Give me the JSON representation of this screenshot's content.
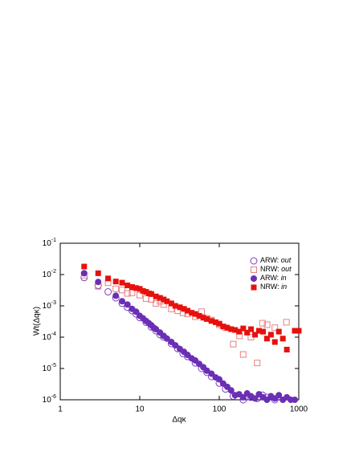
{
  "chart_data": {
    "type": "scatter",
    "xlabel": "Δqκ",
    "ylabel": "Wt(Δqκ)",
    "xlog": true,
    "ylog": true,
    "legend": "upper right",
    "xlim": [
      1,
      1000
    ],
    "xticks": [
      1,
      10,
      100,
      1000
    ],
    "ylim": [
      1e-06,
      0.1
    ],
    "yticks": [
      {
        "value": 1e-06,
        "label": "10-6"
      },
      {
        "value": 1e-05,
        "label": "10-5"
      },
      {
        "value": 0.0001,
        "label": "10-4"
      },
      {
        "value": 0.001,
        "label": "10-3"
      },
      {
        "value": 0.01,
        "label": "10-2"
      },
      {
        "value": 0.1,
        "label": "10-1"
      }
    ],
    "series": [
      {
        "name": "ARW: out",
        "color": "#7b3fc4",
        "marker": "circle",
        "filled": false,
        "x": [
          2,
          3,
          4,
          5,
          6,
          7,
          8,
          9,
          10,
          12,
          14,
          16,
          18,
          20,
          25,
          30,
          35,
          40,
          50,
          60,
          70,
          80,
          100,
          120,
          150,
          200,
          250,
          300,
          350,
          400,
          500
        ],
        "values": [
          0.008,
          0.0045,
          0.0028,
          0.0018,
          0.0012,
          0.0009,
          0.0007,
          0.00055,
          0.00042,
          0.0003,
          0.00021,
          0.00016,
          0.00012,
          0.0001,
          6.2e-05,
          4.3e-05,
          3e-05,
          2.4e-05,
          1.5e-05,
          1e-05,
          7.5e-06,
          5.5e-06,
          3.4e-06,
          2.2e-06,
          1.3e-06,
          1e-06,
          1.2e-06,
          1.1e-06,
          1.4e-06,
          1.2e-06,
          1e-06
        ]
      },
      {
        "name": "NRW: out",
        "color": "#e88080",
        "marker": "square",
        "filled": false,
        "x": [
          2,
          3,
          4,
          5,
          6,
          7,
          8,
          10,
          12,
          14,
          16,
          18,
          20,
          25,
          30,
          35,
          40,
          50,
          60,
          70,
          80,
          100,
          120,
          150,
          180,
          200,
          250,
          300,
          350,
          400,
          500,
          700
        ],
        "values": [
          0.0095,
          0.0042,
          0.0055,
          0.0035,
          0.0032,
          0.0025,
          0.0026,
          0.0022,
          0.0017,
          0.0016,
          0.0012,
          0.0014,
          0.0011,
          0.0008,
          0.0007,
          0.0006,
          0.00055,
          0.00045,
          0.00065,
          0.0004,
          0.00035,
          0.00025,
          0.0002,
          6e-05,
          0.00011,
          2.8e-05,
          0.0001,
          1.5e-05,
          0.00028,
          0.00025,
          0.0002,
          0.0003
        ]
      },
      {
        "name": "ARW: in",
        "color": "#6a2fb5",
        "marker": "circle",
        "filled": true,
        "x": [
          2,
          3,
          5,
          6,
          7,
          8,
          9,
          10,
          11,
          12,
          13,
          14,
          15,
          16,
          18,
          20,
          22,
          25,
          28,
          32,
          36,
          40,
          45,
          50,
          56,
          63,
          70,
          80,
          90,
          100,
          112,
          126,
          141,
          158,
          178,
          200,
          224,
          251,
          282,
          316,
          355,
          398,
          447,
          501,
          562,
          631,
          708,
          794,
          891
        ],
        "values": [
          0.011,
          0.0058,
          0.0021,
          0.0014,
          0.0011,
          0.0008,
          0.00065,
          0.00048,
          0.0004,
          0.00033,
          0.00028,
          0.00024,
          0.0002,
          0.00018,
          0.00014,
          0.00011,
          9e-05,
          7e-05,
          5.5e-05,
          4.2e-05,
          3.4e-05,
          2.7e-05,
          2.1e-05,
          1.8e-05,
          1.4e-05,
          1.1e-05,
          8.5e-06,
          6.8e-06,
          5.2e-06,
          4.5e-06,
          3.3e-06,
          2.6e-06,
          2e-06,
          1.4e-06,
          1.5e-06,
          1.2e-06,
          1.6e-06,
          1.3e-06,
          1.1e-06,
          1.5e-06,
          1.2e-06,
          1e-06,
          1.3e-06,
          1.1e-06,
          1.4e-06,
          1e-06,
          1.2e-06,
          1e-06,
          1e-06
        ]
      },
      {
        "name": "NRW: in",
        "color": "#e8100c",
        "marker": "square",
        "filled": true,
        "x": [
          2,
          3,
          4,
          5,
          6,
          7,
          8,
          9,
          10,
          11,
          12,
          13,
          14,
          16,
          18,
          20,
          22,
          25,
          28,
          32,
          36,
          40,
          45,
          50,
          56,
          63,
          70,
          80,
          90,
          100,
          112,
          126,
          141,
          158,
          178,
          200,
          224,
          251,
          282,
          316,
          355,
          398,
          447,
          501,
          562,
          631,
          708,
          891,
          1000
        ],
        "values": [
          0.018,
          0.011,
          0.0075,
          0.006,
          0.0055,
          0.0045,
          0.004,
          0.0037,
          0.0035,
          0.003,
          0.0028,
          0.0025,
          0.0024,
          0.002,
          0.0018,
          0.0016,
          0.0014,
          0.0012,
          0.001,
          0.0009,
          0.0008,
          0.0007,
          0.0006,
          0.00055,
          0.00048,
          0.00042,
          0.00038,
          0.00033,
          0.0003,
          0.00027,
          0.00022,
          0.0002,
          0.00018,
          0.00017,
          0.00015,
          0.00019,
          0.00014,
          0.00018,
          0.00012,
          0.00016,
          0.00015,
          9e-05,
          0.00012,
          7e-05,
          0.00015,
          9e-05,
          4e-05,
          0.00016,
          0.00016
        ]
      }
    ]
  }
}
